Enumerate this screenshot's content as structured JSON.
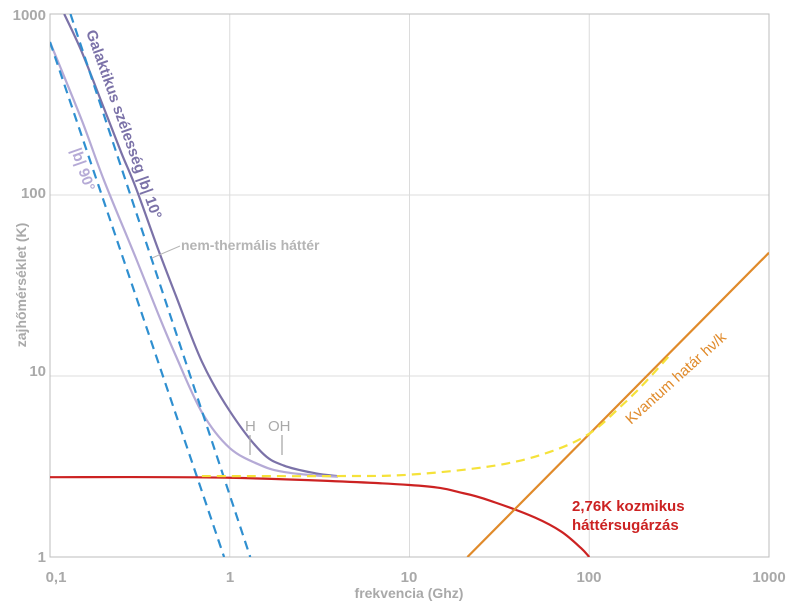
{
  "chart_data": {
    "type": "line",
    "title": "",
    "xlabel": "frekvencia (Ghz)",
    "ylabel": "zajhőmérséklet (K)",
    "xscale": "log",
    "yscale": "log",
    "xlim": [
      0.1,
      1000
    ],
    "ylim": [
      1,
      1000
    ],
    "grid": true,
    "x_ticks": [
      {
        "value": 0.1,
        "label": "0,1"
      },
      {
        "value": 1,
        "label": "1"
      },
      {
        "value": 10,
        "label": "10"
      },
      {
        "value": 100,
        "label": "100"
      },
      {
        "value": 1000,
        "label": "1000"
      }
    ],
    "y_ticks": [
      {
        "value": 1,
        "label": "1"
      },
      {
        "value": 10,
        "label": "10"
      },
      {
        "value": 100,
        "label": "100"
      },
      {
        "value": 1000,
        "label": "1000"
      }
    ],
    "series": [
      {
        "name": "Galaktikus szélesség |b| 10°",
        "color": "#7b72a8",
        "dash": "solid",
        "x": [
          0.12,
          0.15,
          0.2,
          0.25,
          0.3,
          0.4,
          0.5,
          0.7,
          1.0,
          1.5,
          2.0,
          3.0,
          4.0
        ],
        "y": [
          1000,
          620,
          300,
          170,
          110,
          50,
          28,
          12,
          6.4,
          3.8,
          3.2,
          2.9,
          2.8
        ]
      },
      {
        "name": "|b| 90°",
        "color": "#b5aad6",
        "dash": "solid",
        "x": [
          0.1,
          0.15,
          0.2,
          0.3,
          0.4,
          0.5,
          0.7,
          1.0,
          1.5,
          2.0,
          3.0,
          4.0
        ],
        "y": [
          700,
          260,
          120,
          45,
          22,
          13,
          6.3,
          4.0,
          3.2,
          2.95,
          2.82,
          2.78
        ]
      },
      {
        "name": "nem-thermális háttér",
        "color": "#2f8fd0",
        "dash": "dashed",
        "x": [
          0.1,
          0.93
        ],
        "y": [
          700,
          1
        ]
      },
      {
        "name": "nem-thermális háttér",
        "color": "#2f8fd0",
        "dash": "dashed",
        "x": [
          0.13,
          1.3
        ],
        "y": [
          1000,
          1
        ]
      },
      {
        "name": "2,76K kozmikus háttérsugárzás",
        "color": "#cc2222",
        "dash": "solid",
        "x": [
          0.1,
          1,
          10,
          20,
          30,
          50,
          70,
          90,
          100
        ],
        "y": [
          2.76,
          2.74,
          2.5,
          2.25,
          2.0,
          1.65,
          1.38,
          1.12,
          1.0
        ]
      },
      {
        "name": "Kvantum határ hν/k",
        "color": "#e08a2a",
        "dash": "solid",
        "x": [
          21,
          1000
        ],
        "y": [
          1,
          48
        ]
      },
      {
        "name": "",
        "color": "#f5e23a",
        "dash": "dashed",
        "x": [
          0.7,
          4,
          10,
          30,
          60,
          100,
          150,
          200,
          280
        ],
        "y": [
          2.8,
          2.8,
          2.85,
          3.2,
          3.8,
          4.8,
          6.8,
          9.0,
          13.0
        ]
      }
    ],
    "annotations": [
      {
        "text": "Galaktikus szélesség |b| 10°",
        "color": "#7b72a8"
      },
      {
        "text": "|b| 90°",
        "color": "#b5aad6"
      },
      {
        "text": "nem-thermális háttér",
        "color": "#b5b5b5"
      },
      {
        "text": "H",
        "color": "#a9a9a9"
      },
      {
        "text": "OH",
        "color": "#a9a9a9"
      },
      {
        "text": "Kvantum határ hν/k",
        "color": "#e08a2a"
      },
      {
        "text": "2,76K kozmikus",
        "color": "#cc2222"
      },
      {
        "text": "háttérsugárzás",
        "color": "#cc2222"
      }
    ]
  }
}
